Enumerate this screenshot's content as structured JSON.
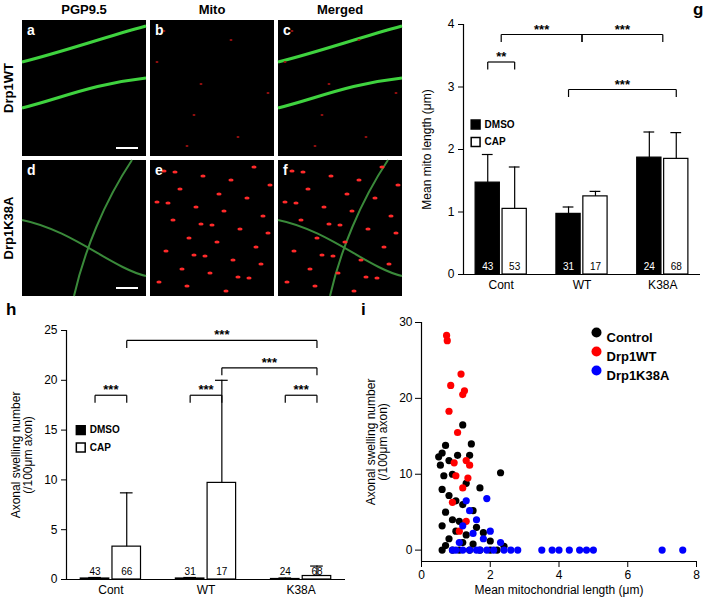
{
  "image_panels": {
    "columns": [
      "PGP9.5",
      "Mito",
      "Merged"
    ],
    "rows": [
      "Drp1WT",
      "Drp1K38A"
    ],
    "panels": [
      [
        "a",
        "b",
        "c"
      ],
      [
        "d",
        "e",
        "f"
      ]
    ]
  },
  "chart_data": [
    {
      "panel": "g",
      "type": "bar",
      "categories": [
        "Cont",
        "WT",
        "K38A"
      ],
      "ylabel": "Mean mito length (μm)",
      "ylim": [
        0,
        4
      ],
      "yticks": [
        0,
        1,
        2,
        3,
        4
      ],
      "legend": "top-left",
      "series": [
        {
          "name": "DMSO",
          "color": "#000000",
          "values": [
            1.47,
            0.97,
            1.87
          ],
          "errors": [
            0.45,
            0.11,
            0.41
          ],
          "n": [
            43,
            31,
            24
          ]
        },
        {
          "name": "CAP",
          "color": "#ffffff",
          "values": [
            1.05,
            1.25,
            1.85
          ],
          "errors": [
            0.67,
            0.08,
            0.42
          ],
          "n": [
            53,
            17,
            68
          ]
        }
      ],
      "significance": [
        [
          {
            "from": {
              "category": "WT",
              "series": "DMSO"
            },
            "to": {
              "category": "K38A",
              "series": "CAP"
            },
            "label": "***"
          }
        ],
        [
          {
            "from": {
              "category": "Cont",
              "series": "DMSO"
            },
            "to": {
              "category": "Cont",
              "series": "CAP"
            },
            "label": "**"
          }
        ],
        [
          {
            "from": {
              "category": "Cont"
            },
            "to": {
              "category": "WT"
            },
            "label": "***"
          },
          {
            "from": {
              "category": "WT"
            },
            "to": {
              "category": "K38A"
            },
            "label": "***"
          }
        ]
      ]
    },
    {
      "panel": "h",
      "type": "bar",
      "categories": [
        "Cont",
        "WT",
        "K38A"
      ],
      "ylabel": "Axonal swelling number\n(/100μm axon)",
      "ylim": [
        0,
        25
      ],
      "yticks": [
        0,
        5,
        10,
        15,
        20,
        25
      ],
      "legend": "top-left",
      "series": [
        {
          "name": "DMSO",
          "color": "#000000",
          "values": [
            0.1,
            0.1,
            0.05
          ],
          "errors": [
            0.1,
            0.1,
            0.1
          ],
          "n": [
            43,
            31,
            24
          ]
        },
        {
          "name": "CAP",
          "color": "#ffffff",
          "values": [
            3.3,
            9.7,
            0.35
          ],
          "errors": [
            5.4,
            10.3,
            1.0
          ],
          "n": [
            66,
            17,
            68
          ]
        }
      ],
      "significance": [
        [
          {
            "from": {
              "category": "Cont",
              "series": "DMSO"
            },
            "to": {
              "category": "Cont",
              "series": "CAP"
            },
            "label": "***"
          },
          {
            "from": {
              "category": "WT",
              "series": "DMSO"
            },
            "to": {
              "category": "WT",
              "series": "CAP"
            },
            "label": "***"
          },
          {
            "from": {
              "category": "K38A",
              "series": "DMSO"
            },
            "to": {
              "category": "K38A",
              "series": "CAP"
            },
            "label": "***"
          }
        ],
        [
          {
            "from": {
              "category": "WT",
              "series": "CAP"
            },
            "to": {
              "category": "K38A",
              "series": "CAP"
            },
            "label": "***"
          }
        ],
        [
          {
            "from": {
              "category": "Cont",
              "series": "CAP"
            },
            "to": {
              "category": "K38A",
              "series": "CAP"
            },
            "label": "***"
          }
        ]
      ]
    },
    {
      "panel": "i",
      "type": "scatter",
      "xlabel": "Mean mitochondrial length (μm)",
      "ylabel": "Axonal swelling number\n(/100μm axon)",
      "xlim": [
        0,
        8
      ],
      "xticks": [
        0,
        2,
        4,
        6,
        8
      ],
      "ylim": [
        -1.5,
        30
      ],
      "yticks": [
        0,
        10,
        20,
        30
      ],
      "legend": "top-right",
      "series": [
        {
          "name": "Control",
          "color": "#000000",
          "x": [
            0.5,
            0.6,
            0.55,
            0.7,
            0.8,
            1.05,
            1.2,
            1.45,
            1.4,
            0.9,
            0.65,
            1.3,
            1.7,
            2.3,
            0.6,
            0.8,
            1.0,
            1.2,
            1.5,
            0.7,
            0.9,
            1.1,
            1.6,
            0.6,
            1.0,
            1.3,
            1.8,
            0.8,
            1.2,
            2.0,
            0.6,
            0.9,
            1.1,
            1.4,
            1.7,
            2.0,
            2.2,
            1.5,
            2.4,
            0.7
          ],
          "y": [
            12.3,
            12.8,
            11.2,
            13.8,
            11.8,
            12.5,
            16.5,
            14.0,
            12.5,
            10.0,
            9.8,
            8.8,
            8.2,
            10.2,
            8.0,
            7.2,
            6.5,
            6.0,
            5.2,
            5.0,
            4.0,
            3.8,
            3.0,
            3.2,
            2.5,
            2.0,
            2.3,
            1.5,
            1.0,
            1.2,
            0,
            0,
            0,
            0,
            0,
            0,
            0,
            0.8,
            0.5,
            0.6
          ]
        },
        {
          "name": "Drp1WT",
          "color": "#ff0000",
          "x": [
            0.73,
            0.75,
            0.8,
            0.85,
            0.95,
            1.05,
            1.15,
            1.2,
            1.25,
            1.3,
            1.4,
            1.35,
            1.2,
            1.0,
            1.3,
            1.1,
            0.9
          ],
          "y": [
            28.3,
            27.6,
            18.3,
            21.7,
            11.5,
            15.5,
            23.2,
            20.5,
            21.0,
            11.8,
            11.2,
            9.5,
            8.2,
            9.8,
            3.8,
            2.5,
            6.3
          ]
        },
        {
          "name": "Drp1K38A",
          "color": "#0000ff",
          "x": [
            1.3,
            1.9,
            1.4,
            1.6,
            1.2,
            1.5,
            2.0,
            1.8,
            1.1,
            2.3,
            0.9,
            1.0,
            1.2,
            1.4,
            1.6,
            1.7,
            1.9,
            2.1,
            2.4,
            2.6,
            2.8,
            3.5,
            3.8,
            4.0,
            4.3,
            4.6,
            4.8,
            5.0,
            7.0,
            7.6
          ],
          "y": [
            6.5,
            6.8,
            5.2,
            4.0,
            3.2,
            2.2,
            2.5,
            1.5,
            1.0,
            1.0,
            0,
            0,
            0,
            0,
            0,
            0,
            0,
            0,
            0,
            0,
            0,
            0,
            0,
            0,
            0,
            0,
            0,
            0,
            0,
            0
          ]
        }
      ]
    }
  ]
}
